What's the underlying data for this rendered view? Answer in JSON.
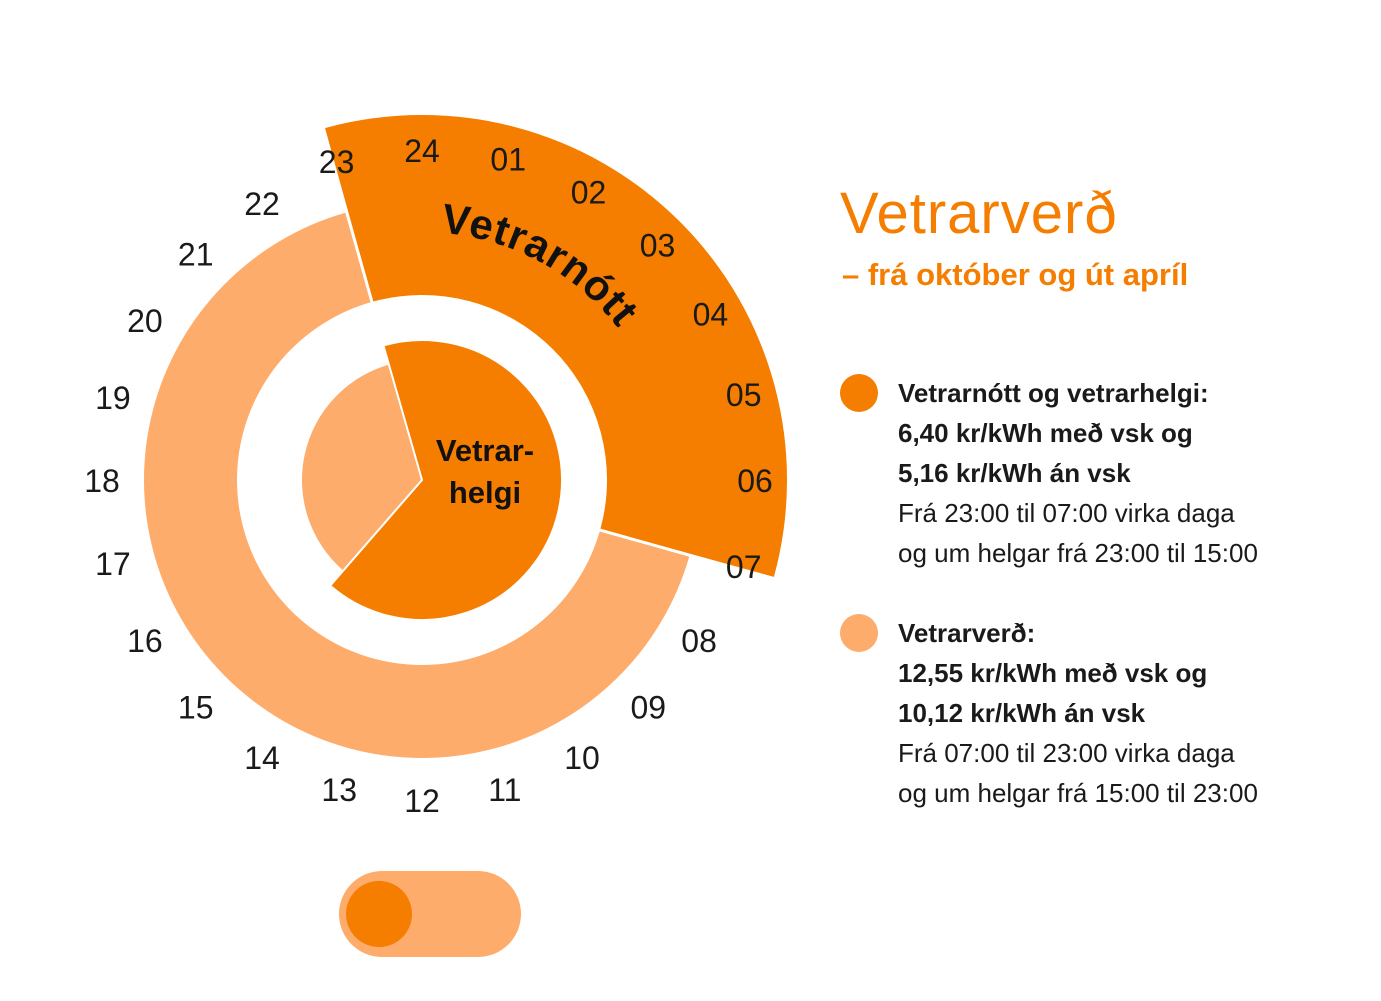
{
  "colors": {
    "dark_orange": "#f57d00",
    "light_orange": "#fdac6b",
    "white": "#ffffff",
    "text": "#1a1a1a"
  },
  "dial": {
    "outer_ring_label": "Vetrarnótt",
    "inner_pie_label_line1": "Vetrar-",
    "inner_pie_label_line2": "helgi",
    "hour_labels": [
      "01",
      "02",
      "03",
      "04",
      "05",
      "06",
      "07",
      "08",
      "09",
      "10",
      "11",
      "12",
      "13",
      "14",
      "15",
      "16",
      "17",
      "18",
      "19",
      "20",
      "21",
      "22",
      "23",
      "24"
    ],
    "outer_ring": {
      "description_hours": "24-hour clock",
      "night_start_hour": 23,
      "night_end_hour": 7
    },
    "inner_pie": {
      "weekend_night_start_hour": 23,
      "weekend_night_end_hour": 15
    }
  },
  "info": {
    "title": "Vetrarverð",
    "subtitle": "– frá október og út apríl",
    "legend": [
      {
        "color_key": "dark_orange",
        "heading": "Vetrarnótt og vetrarhelgi:",
        "price_with_vat": "6,40 kr/kWh með vsk og",
        "price_without_vat": "5,16 kr/kWh án vsk",
        "time_line1": "Frá 23:00 til 07:00 virka daga",
        "time_line2": "og um helgar frá 23:00 til 15:00"
      },
      {
        "color_key": "light_orange",
        "heading": "Vetrarverð:",
        "price_with_vat": "12,55 kr/kWh með vsk og",
        "price_without_vat": "10,12 kr/kWh án vsk",
        "time_line1": "Frá 07:00 til 23:00 virka daga",
        "time_line2": "og um helgar frá 15:00 til 23:00"
      }
    ]
  },
  "toggle": {
    "state": "left"
  }
}
